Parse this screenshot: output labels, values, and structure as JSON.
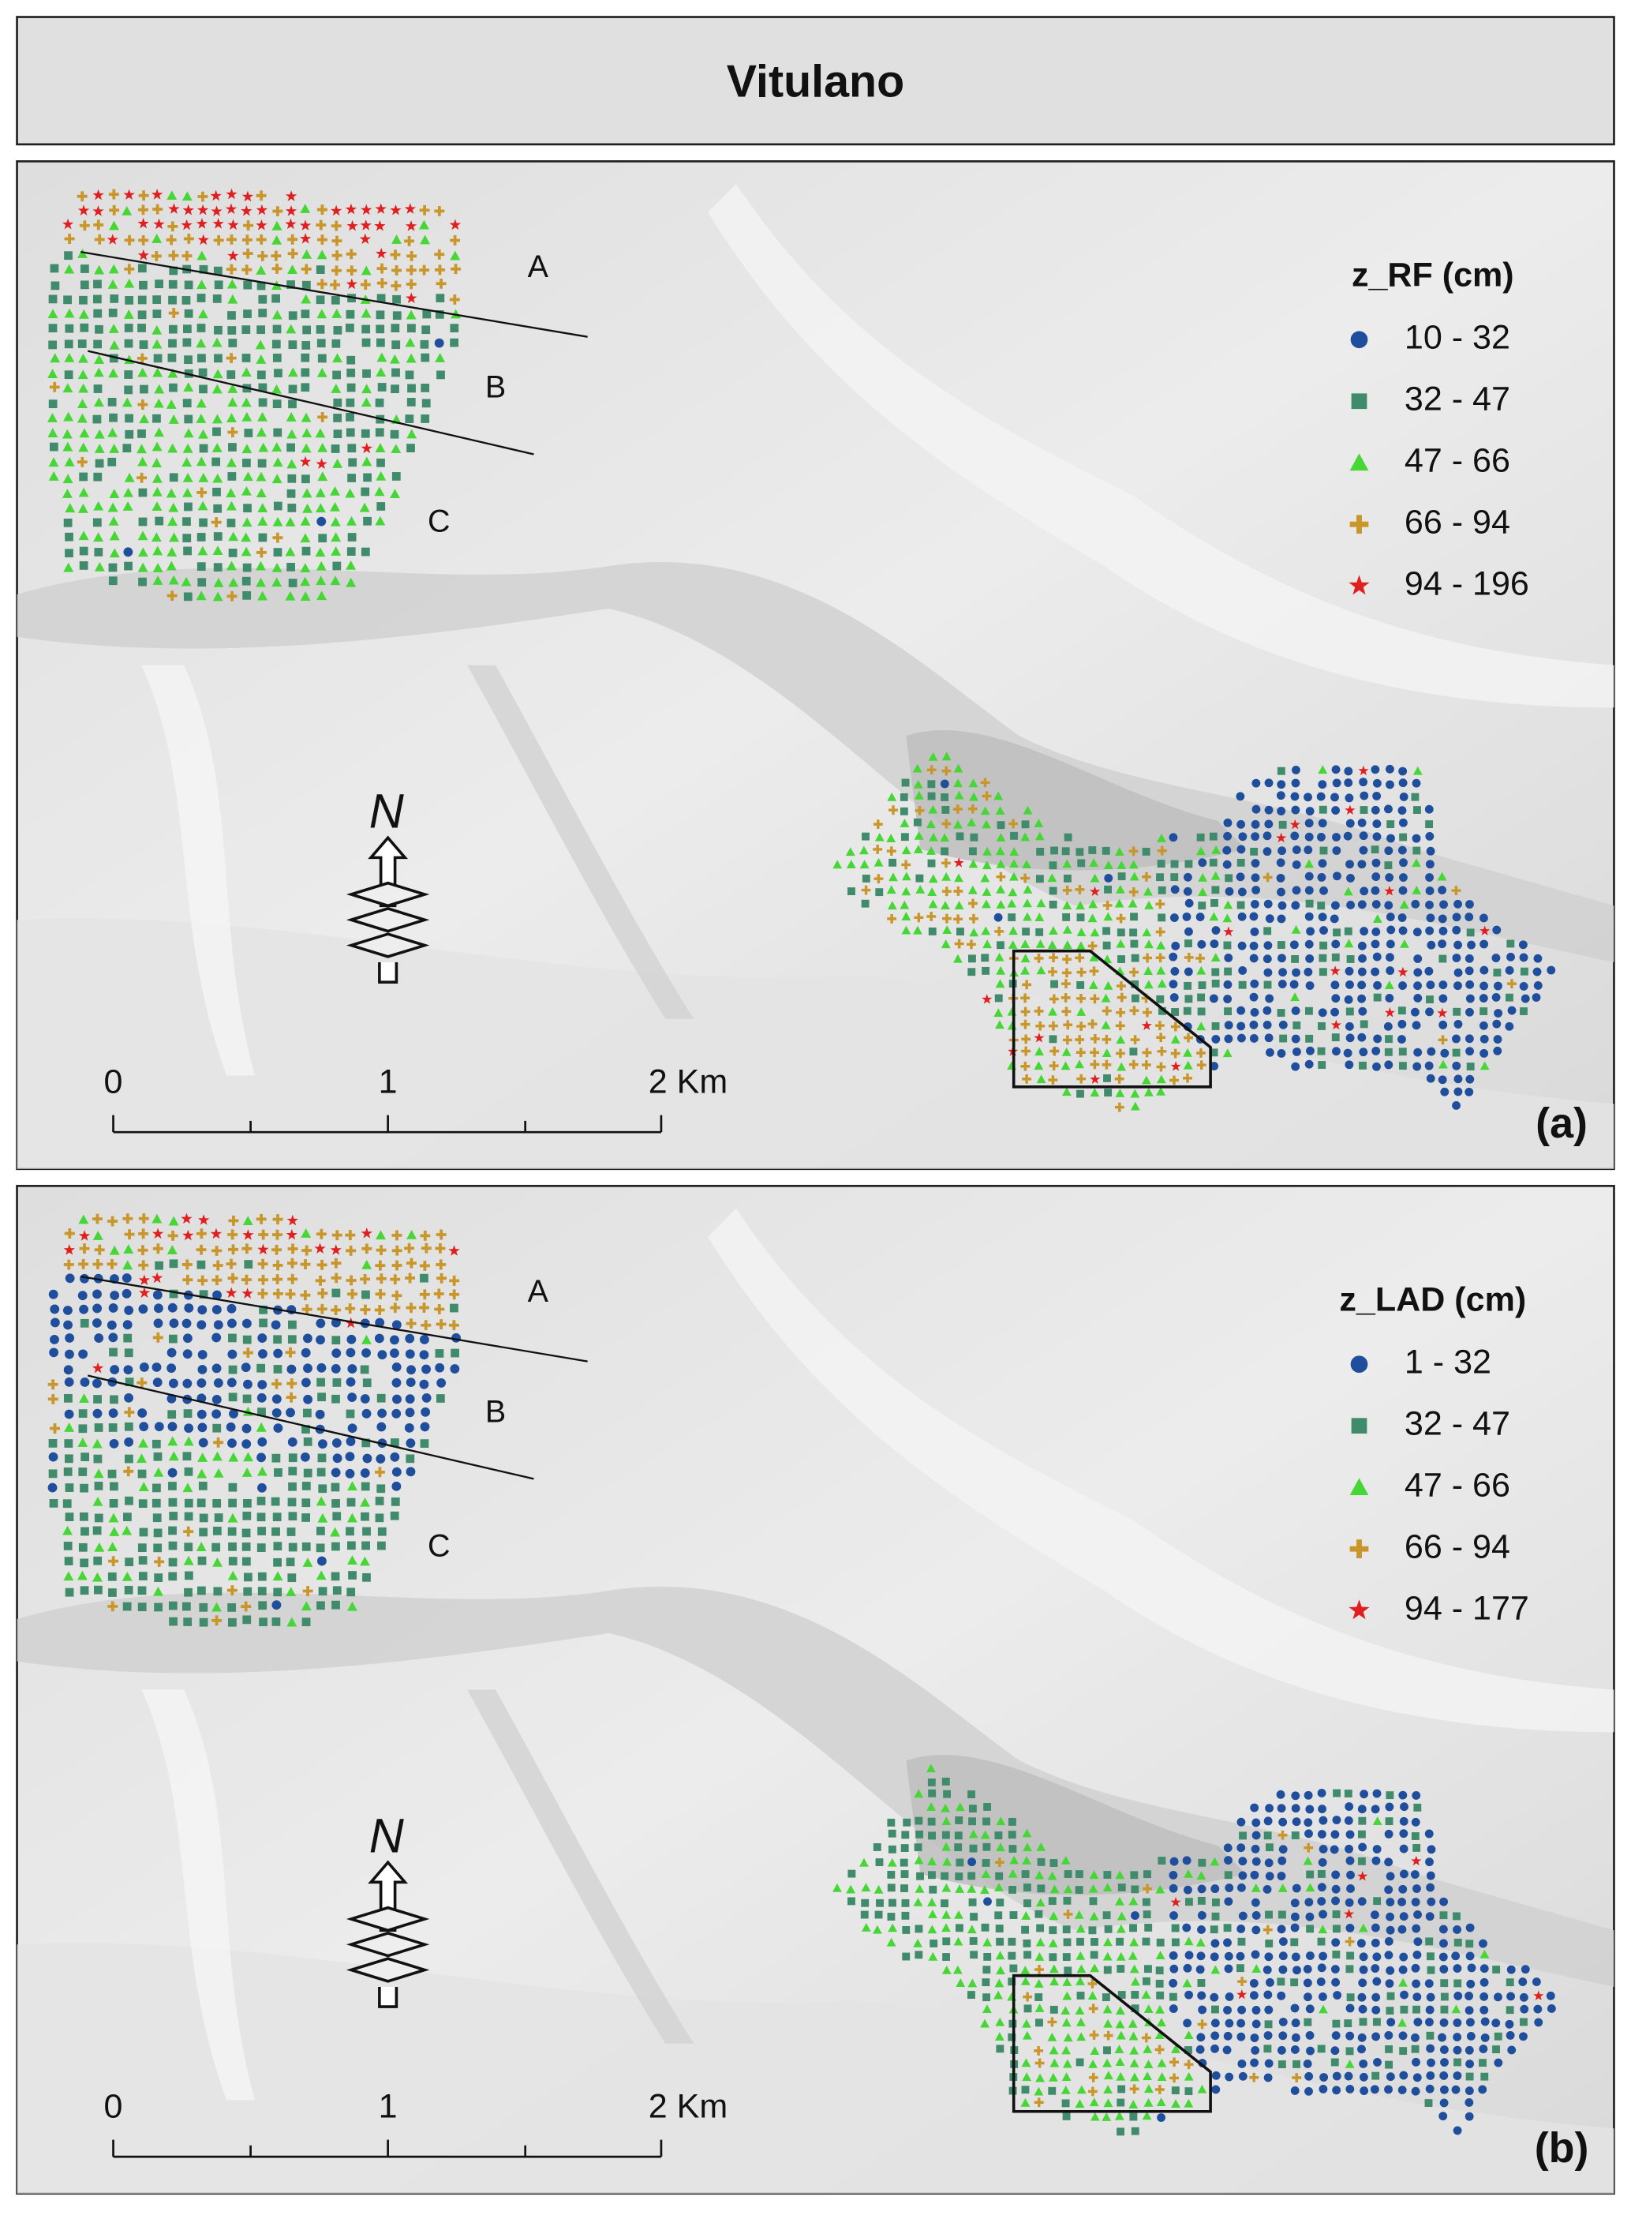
{
  "title": "Vitulano",
  "panels": [
    {
      "legend": {
        "title": "z_RF (cm)",
        "items": [
          "10 - 32",
          "32 - 47",
          "47 - 66",
          "66 - 94",
          "94 - 196"
        ]
      },
      "zones": [
        "A",
        "B",
        "C"
      ],
      "scale": [
        "0",
        "1",
        "2 Km"
      ],
      "north": "N",
      "label": "(a)"
    },
    {
      "legend": {
        "title": "z_LAD (cm)",
        "items": [
          "1 - 32",
          "32 - 47",
          "47 - 66",
          "66 - 94",
          "94 - 177"
        ]
      },
      "zones": [
        "A",
        "B",
        "C"
      ],
      "scale": [
        "0",
        "1",
        "2 Km"
      ],
      "north": "N",
      "label": "(b)"
    }
  ]
}
